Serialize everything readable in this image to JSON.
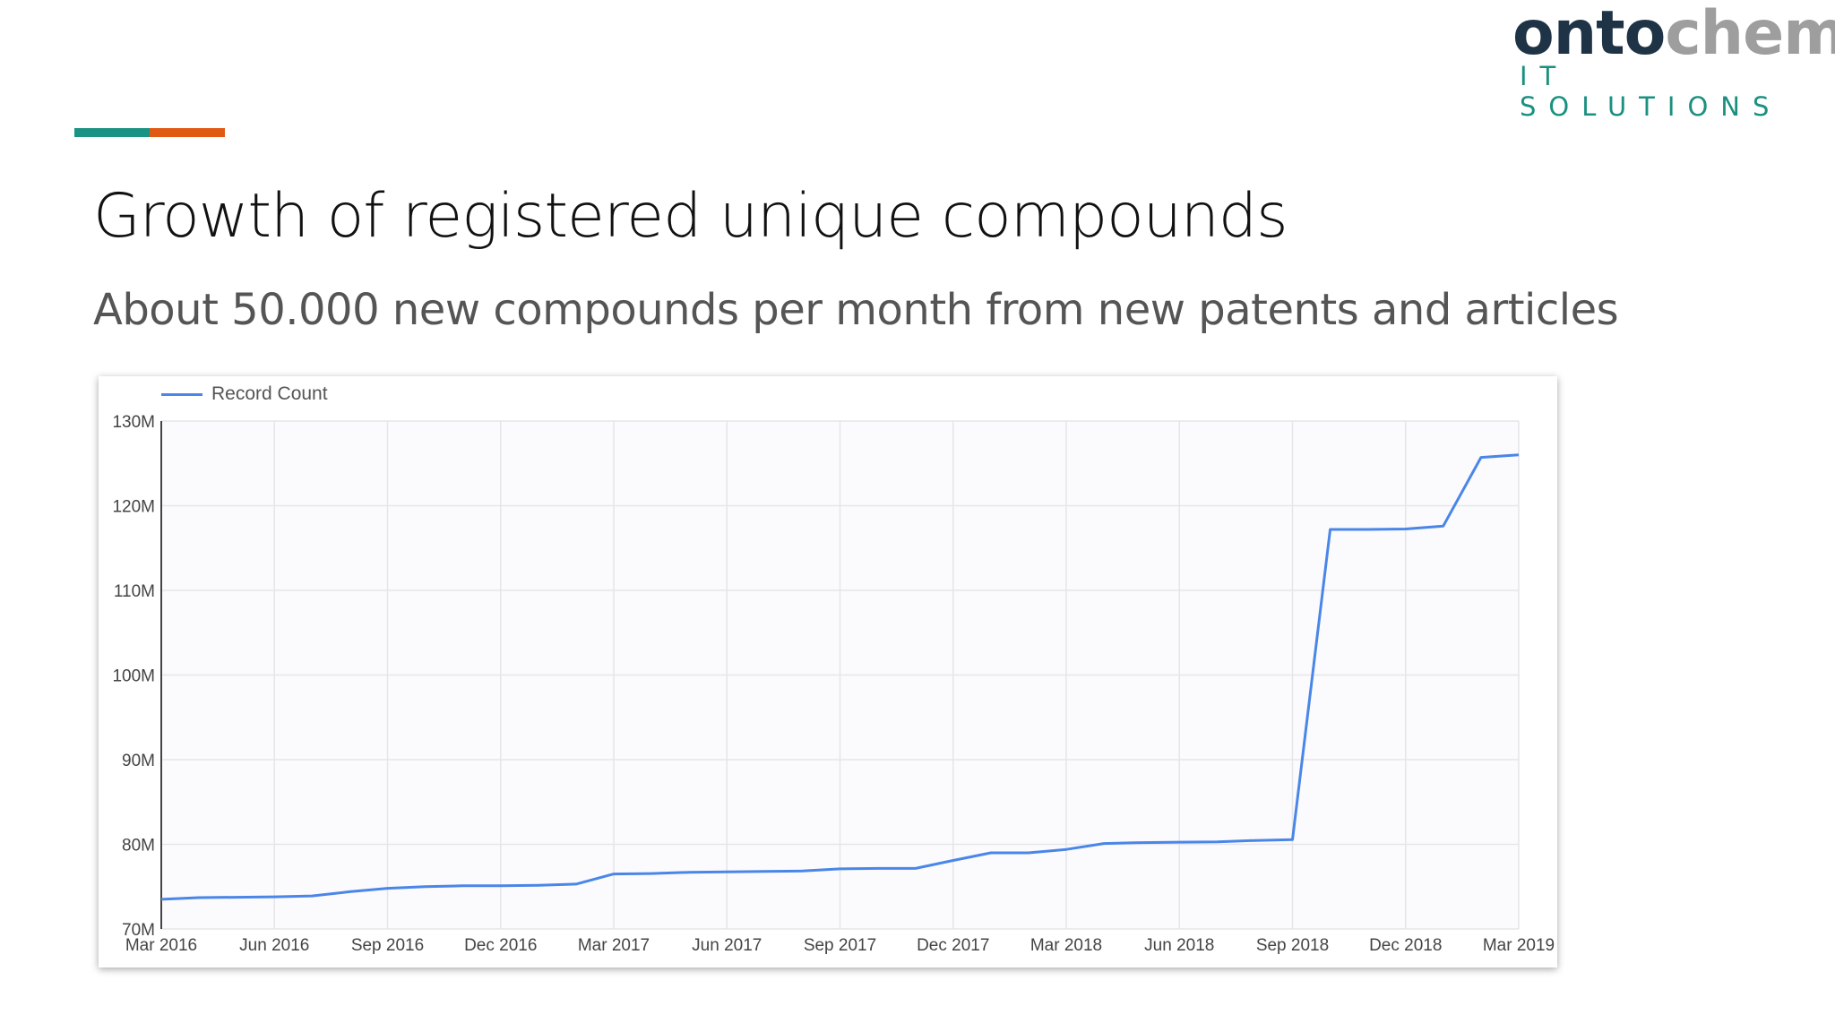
{
  "logo": {
    "part1": "onto",
    "part2": "chem",
    "tagline": "IT SOLUTIONS"
  },
  "colors": {
    "teal": "#1b9384",
    "orange": "#e05a14",
    "line": "#4a86e8"
  },
  "slide": {
    "title": "Growth of registered unique compounds",
    "subtitle": "About 50.000 new compounds per month from new patents and articles"
  },
  "chart_data": {
    "type": "line",
    "legend": "top-left",
    "grid": true,
    "x_tick_labels": [
      "Mar 2016",
      "Jun 2016",
      "Sep 2016",
      "Dec 2016",
      "Mar 2017",
      "Jun 2017",
      "Sep 2017",
      "Dec 2017",
      "Mar 2018",
      "Jun 2018",
      "Sep 2018",
      "Dec 2018",
      "Mar 2019"
    ],
    "y_tick_labels": [
      "70M",
      "80M",
      "90M",
      "100M",
      "110M",
      "120M",
      "130M"
    ],
    "ylim": [
      70000000,
      130000000
    ],
    "xlim": [
      "2016-03",
      "2019-03"
    ],
    "series": [
      {
        "name": "Record Count",
        "x": [
          "2016-03",
          "2016-04",
          "2016-05",
          "2016-06",
          "2016-07",
          "2016-08",
          "2016-09",
          "2016-10",
          "2016-11",
          "2016-12",
          "2017-01",
          "2017-02",
          "2017-03",
          "2017-04",
          "2017-05",
          "2017-06",
          "2017-07",
          "2017-08",
          "2017-09",
          "2017-10",
          "2017-11",
          "2017-12",
          "2018-01",
          "2018-02",
          "2018-03",
          "2018-04",
          "2018-05",
          "2018-06",
          "2018-07",
          "2018-08",
          "2018-09",
          "2018-10",
          "2018-11",
          "2018-12",
          "2019-01",
          "2019-02",
          "2019-03"
        ],
        "values": [
          73500000,
          73700000,
          73750000,
          73800000,
          73900000,
          74400000,
          74800000,
          75000000,
          75100000,
          75100000,
          75150000,
          75300000,
          76500000,
          76550000,
          76700000,
          76750000,
          76800000,
          76850000,
          77100000,
          77150000,
          77150000,
          78100000,
          79000000,
          79000000,
          79400000,
          80100000,
          80200000,
          80250000,
          80300000,
          80450000,
          80550000,
          117200000,
          117200000,
          117250000,
          117600000,
          125700000,
          126000000
        ]
      }
    ]
  }
}
